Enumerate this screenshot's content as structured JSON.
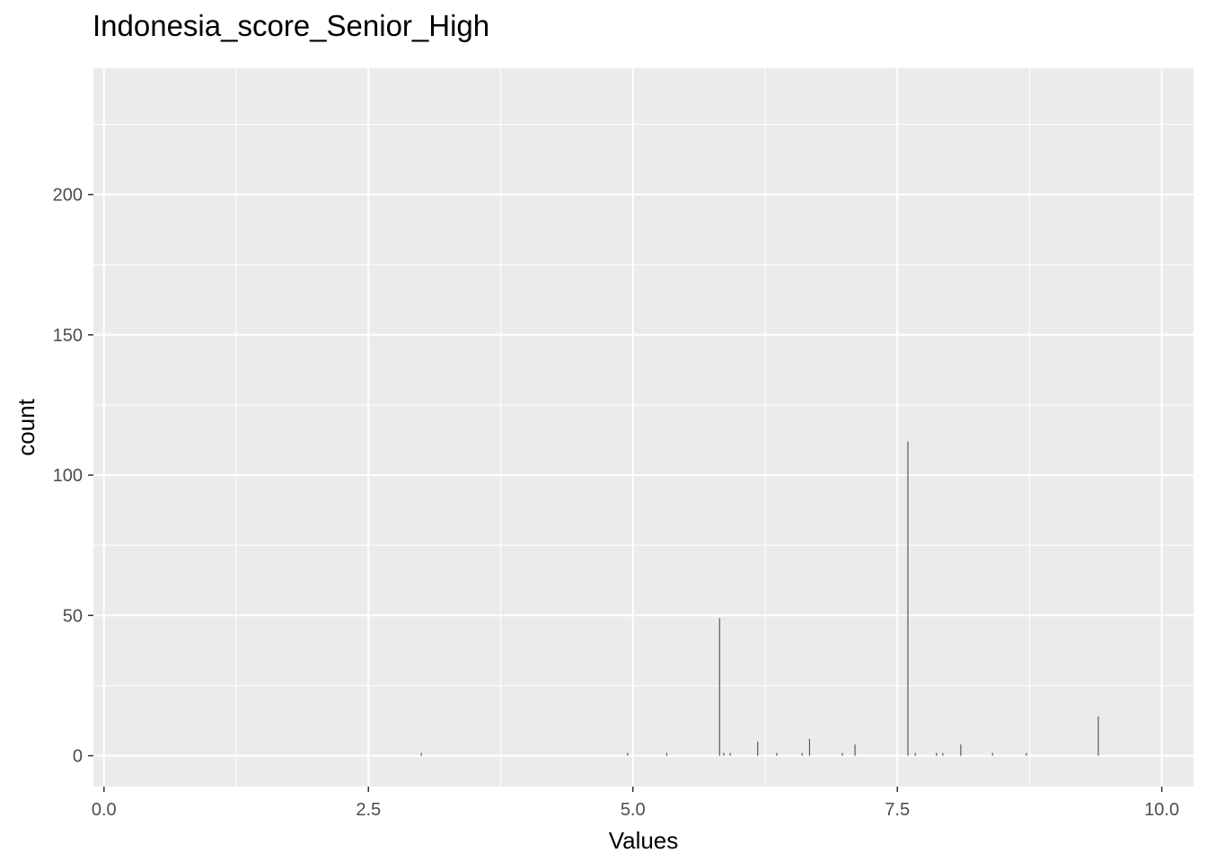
{
  "chart_data": {
    "type": "bar",
    "subtype": "histogram",
    "title": "Indonesia_score_Senior_High",
    "xlabel": "Values",
    "ylabel": "count",
    "xlim": [
      -0.1,
      10.3
    ],
    "ylim": [
      -11,
      245
    ],
    "x_ticks": [
      0.0,
      2.5,
      5.0,
      7.5,
      10.0
    ],
    "x_tick_labels": [
      "0.0",
      "2.5",
      "5.0",
      "7.5",
      "10.0"
    ],
    "y_ticks": [
      0,
      50,
      100,
      150,
      200
    ],
    "y_tick_labels": [
      "0",
      "50",
      "100",
      "150",
      "200"
    ],
    "grid": true,
    "legend": "none",
    "colors": {
      "panel_background": "#ebebeb",
      "grid": "#ffffff",
      "bars": "#595959",
      "tick_text": "#4d4d4d",
      "tick_marks": "#333333"
    },
    "x": [
      3.0,
      4.95,
      5.32,
      5.82,
      5.86,
      5.92,
      6.18,
      6.36,
      6.6,
      6.67,
      6.98,
      7.1,
      7.6,
      7.67,
      7.87,
      7.93,
      8.1,
      8.4,
      8.72,
      9.4
    ],
    "values": [
      1,
      1,
      1,
      49,
      1,
      1,
      5,
      1,
      1,
      6,
      1,
      4,
      112,
      1,
      1,
      1,
      4,
      1,
      1,
      14
    ]
  }
}
